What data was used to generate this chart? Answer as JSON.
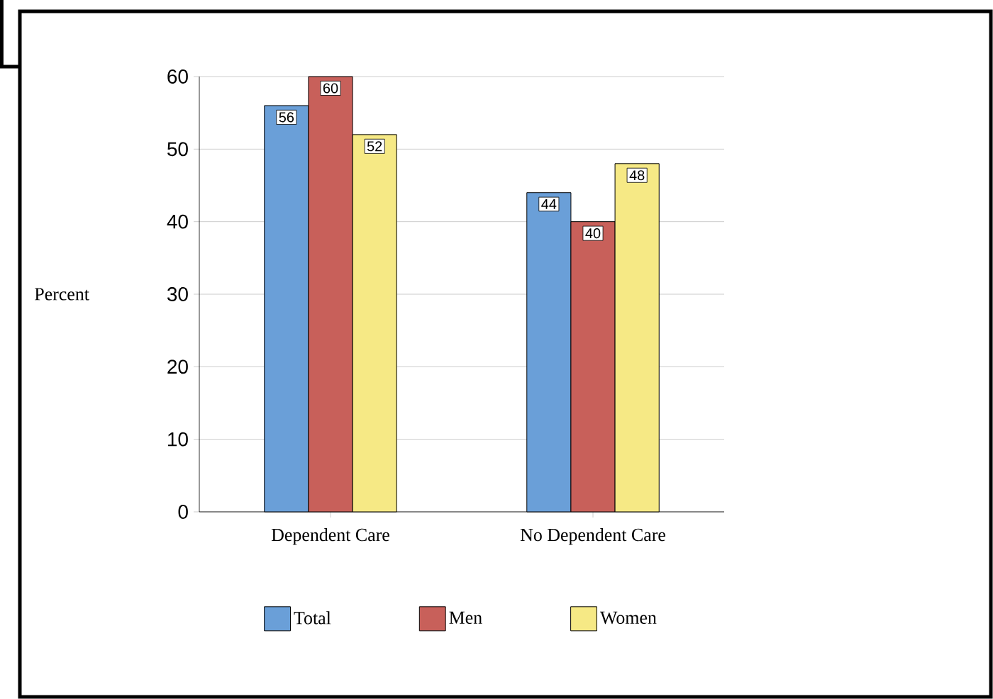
{
  "chart_data": {
    "type": "bar",
    "ylabel": "Percent",
    "categories": [
      "Dependent Care",
      "No Dependent Care"
    ],
    "series": [
      {
        "name": "Total",
        "color": "#6a9fd8",
        "values": [
          56,
          44
        ]
      },
      {
        "name": "Men",
        "color": "#c8605a",
        "values": [
          60,
          40
        ]
      },
      {
        "name": "Women",
        "color": "#f6e985",
        "values": [
          52,
          48
        ]
      }
    ],
    "ylim": [
      0,
      60
    ],
    "yticks": [
      0,
      10,
      20,
      30,
      40,
      50,
      60
    ],
    "grid": "y",
    "legend": "bottom",
    "data_labels": true
  }
}
